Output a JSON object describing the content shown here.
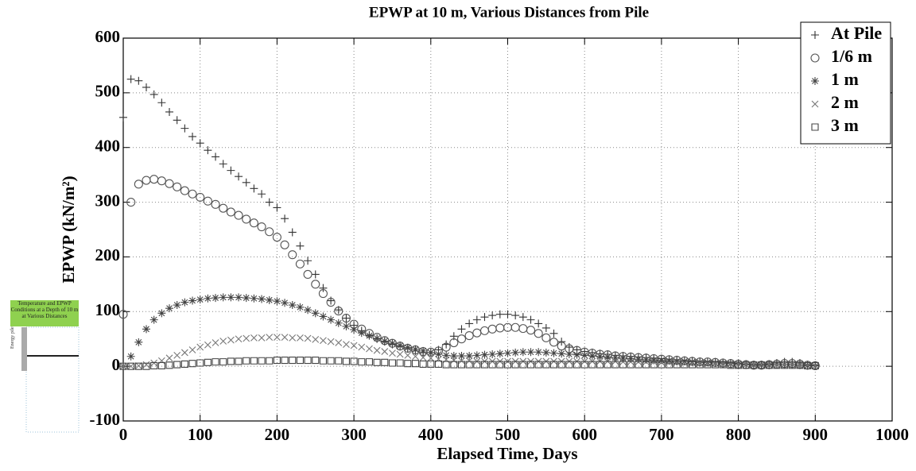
{
  "chart_data": {
    "type": "scatter",
    "title": "EPWP at 10 m, Various Distances from Pile",
    "xlabel": "Elapsed Time, Days",
    "ylabel": "EPWP (kN/m²)",
    "xlim": [
      0,
      1000
    ],
    "ylim": [
      -100,
      600
    ],
    "xticks": [
      0,
      100,
      200,
      300,
      400,
      500,
      600,
      700,
      800,
      900,
      1000
    ],
    "yticks": [
      -100,
      0,
      100,
      200,
      300,
      400,
      500,
      600
    ],
    "grid": true,
    "legend": "upper right",
    "annotations": {
      "inset_caption": "Temperature and EPWP Conditions at a Depth of 10 m at Various Distances",
      "inset_pile": "Energy pile"
    },
    "x": [
      0,
      10,
      20,
      30,
      40,
      50,
      60,
      70,
      80,
      90,
      100,
      110,
      120,
      130,
      140,
      150,
      160,
      170,
      180,
      190,
      200,
      210,
      220,
      230,
      240,
      250,
      260,
      270,
      280,
      290,
      300,
      310,
      320,
      330,
      340,
      350,
      360,
      370,
      380,
      390,
      400,
      410,
      420,
      430,
      440,
      450,
      460,
      470,
      480,
      490,
      500,
      510,
      520,
      530,
      540,
      550,
      560,
      570,
      580,
      590,
      600,
      610,
      620,
      630,
      640,
      650,
      660,
      670,
      680,
      690,
      700,
      710,
      720,
      730,
      740,
      750,
      760,
      770,
      780,
      790,
      800,
      810,
      820,
      830,
      840,
      850,
      860,
      870,
      880,
      890,
      900
    ],
    "series": [
      {
        "name": "At Pile",
        "marker": "plus",
        "color": "#333333",
        "values": [
          455,
          525,
          522,
          510,
          497,
          482,
          465,
          450,
          435,
          420,
          408,
          395,
          383,
          370,
          358,
          347,
          336,
          325,
          315,
          300,
          290,
          270,
          245,
          220,
          193,
          168,
          143,
          120,
          103,
          88,
          75,
          65,
          57,
          50,
          45,
          40,
          36,
          32,
          28,
          25,
          25,
          30,
          40,
          55,
          68,
          78,
          85,
          90,
          93,
          95,
          95,
          93,
          90,
          85,
          78,
          70,
          60,
          45,
          35,
          30,
          27,
          25,
          23,
          22,
          20,
          19,
          18,
          17,
          16,
          15,
          14,
          13,
          12,
          11,
          10,
          9,
          8,
          8,
          7,
          6,
          5,
          4,
          3,
          3,
          4,
          6,
          8,
          8,
          6,
          3,
          2
        ]
      },
      {
        "name": "1/6 m",
        "marker": "circle",
        "color": "#555555",
        "values": [
          95,
          300,
          333,
          340,
          342,
          339,
          334,
          328,
          321,
          315,
          309,
          302,
          296,
          289,
          282,
          276,
          269,
          262,
          255,
          246,
          236,
          222,
          204,
          187,
          168,
          150,
          133,
          117,
          101,
          88,
          77,
          68,
          60,
          53,
          47,
          42,
          37,
          33,
          30,
          27,
          26,
          28,
          35,
          43,
          50,
          56,
          61,
          65,
          68,
          70,
          71,
          71,
          69,
          66,
          60,
          52,
          44,
          37,
          32,
          29,
          26,
          24,
          22,
          21,
          19,
          18,
          17,
          16,
          15,
          14,
          13,
          12,
          11,
          10,
          9,
          8,
          8,
          7,
          6,
          5,
          4,
          3,
          2,
          2,
          3,
          4,
          5,
          5,
          4,
          2,
          1
        ]
      },
      {
        "name": "1 m",
        "marker": "asterisk",
        "color": "#444444",
        "values": [
          0,
          18,
          44,
          68,
          85,
          97,
          106,
          112,
          117,
          120,
          122,
          124,
          125,
          126,
          126,
          126,
          125,
          124,
          123,
          121,
          119,
          116,
          112,
          108,
          103,
          97,
          91,
          85,
          79,
          73,
          67,
          61,
          56,
          51,
          46,
          42,
          38,
          34,
          31,
          28,
          25,
          22,
          20,
          19,
          19,
          19,
          20,
          21,
          22,
          23,
          24,
          25,
          26,
          26,
          26,
          25,
          24,
          23,
          22,
          21,
          20,
          19,
          18,
          17,
          16,
          15,
          14,
          13,
          12,
          11,
          11,
          10,
          9,
          9,
          8,
          7,
          7,
          6,
          5,
          5,
          4,
          3,
          2,
          2,
          2,
          3,
          3,
          3,
          2,
          1,
          1
        ]
      },
      {
        "name": "2 m",
        "marker": "x",
        "color": "#777777",
        "values": [
          0,
          0,
          1,
          3,
          6,
          10,
          15,
          20,
          25,
          30,
          35,
          39,
          43,
          46,
          48,
          50,
          51,
          52,
          52,
          53,
          53,
          53,
          52,
          52,
          51,
          49,
          47,
          45,
          43,
          40,
          38,
          35,
          32,
          29,
          27,
          24,
          22,
          20,
          18,
          16,
          15,
          13,
          12,
          11,
          10,
          10,
          9,
          9,
          9,
          9,
          9,
          9,
          9,
          9,
          9,
          9,
          9,
          9,
          9,
          9,
          9,
          9,
          9,
          9,
          9,
          8,
          8,
          8,
          8,
          8,
          7,
          7,
          7,
          6,
          6,
          6,
          5,
          5,
          5,
          4,
          4,
          3,
          3,
          3,
          3,
          3,
          3,
          3,
          2,
          2,
          1
        ]
      },
      {
        "name": "3 m",
        "marker": "square",
        "color": "#444444",
        "values": [
          0,
          0,
          0,
          0,
          1,
          1,
          2,
          3,
          4,
          5,
          6,
          7,
          8,
          8,
          9,
          9,
          10,
          10,
          10,
          10,
          11,
          11,
          11,
          11,
          11,
          11,
          10,
          10,
          10,
          9,
          9,
          8,
          8,
          7,
          7,
          6,
          6,
          5,
          5,
          4,
          4,
          4,
          3,
          3,
          3,
          3,
          3,
          3,
          3,
          3,
          3,
          3,
          3,
          3,
          3,
          3,
          3,
          3,
          3,
          3,
          3,
          3,
          3,
          3,
          3,
          3,
          3,
          3,
          3,
          3,
          3,
          3,
          3,
          3,
          3,
          3,
          3,
          3,
          3,
          2,
          2,
          2,
          2,
          2,
          2,
          2,
          2,
          2,
          2,
          1,
          1
        ]
      }
    ]
  }
}
